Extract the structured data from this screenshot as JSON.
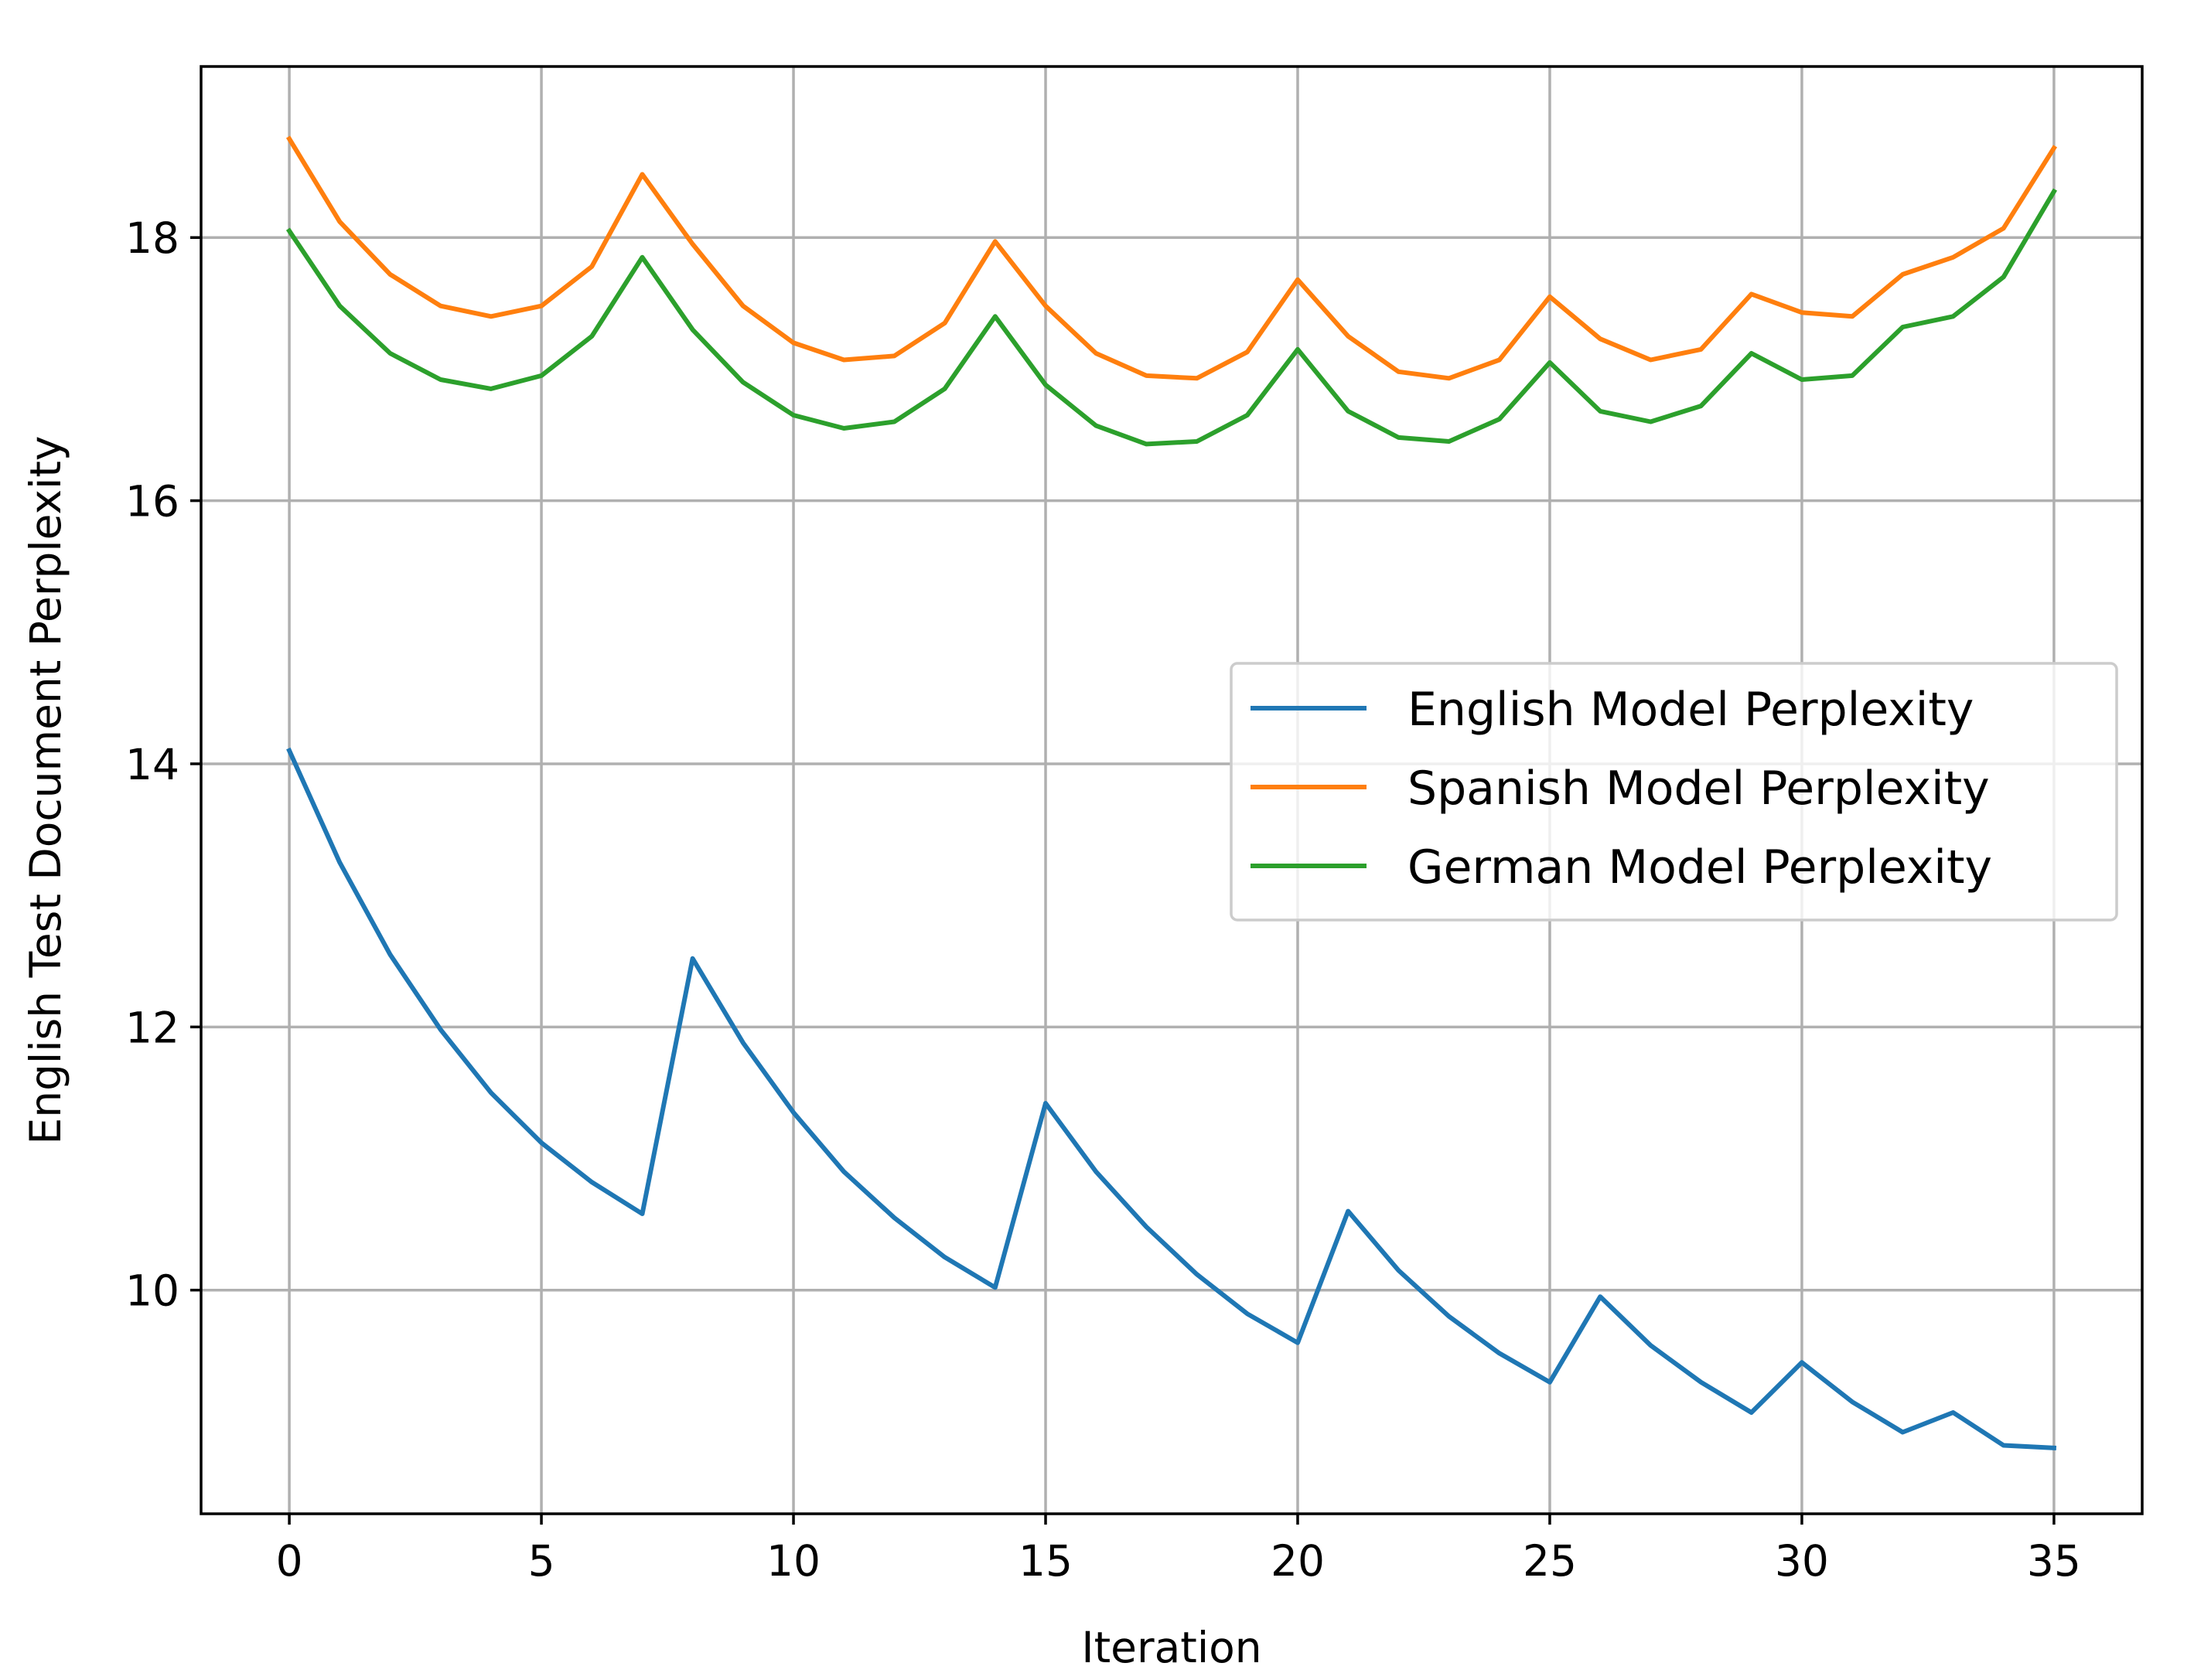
{
  "chart_data": {
    "type": "line",
    "title": "",
    "xlabel": "Iteration",
    "ylabel": "English Test Document Perplexity",
    "xlim": [
      -1.75,
      36.75
    ],
    "ylim": [
      8.3,
      19.3
    ],
    "xticks": [
      0,
      5,
      10,
      15,
      20,
      25,
      30,
      35
    ],
    "yticks": [
      10,
      12,
      14,
      16,
      18
    ],
    "grid": true,
    "legend_position": "center-right",
    "x": [
      0,
      1,
      2,
      3,
      4,
      5,
      6,
      7,
      8,
      9,
      10,
      11,
      12,
      13,
      14,
      15,
      16,
      17,
      18,
      19,
      20,
      21,
      22,
      23,
      24,
      25,
      26,
      27,
      28,
      29,
      30,
      31,
      32,
      33,
      34,
      35
    ],
    "series": [
      {
        "name": "English Model Perplexity",
        "color": "#1f77b4",
        "values": [
          14.1,
          13.25,
          12.55,
          11.98,
          11.5,
          11.12,
          10.82,
          10.58,
          12.52,
          11.88,
          11.35,
          10.9,
          10.55,
          10.25,
          10.02,
          11.42,
          10.9,
          10.48,
          10.12,
          9.82,
          9.6,
          10.6,
          10.15,
          9.8,
          9.52,
          9.3,
          9.95,
          9.58,
          9.3,
          9.07,
          9.45,
          9.15,
          8.92,
          9.07,
          8.82,
          8.8
        ]
      },
      {
        "name": "Spanish Model Perplexity",
        "color": "#ff7f0e",
        "values": [
          18.75,
          18.12,
          17.72,
          17.48,
          17.4,
          17.48,
          17.78,
          18.48,
          17.95,
          17.48,
          17.2,
          17.07,
          17.1,
          17.35,
          17.97,
          17.48,
          17.12,
          16.95,
          16.93,
          17.13,
          17.68,
          17.25,
          16.98,
          16.93,
          17.07,
          17.55,
          17.23,
          17.07,
          17.15,
          17.57,
          17.43,
          17.4,
          17.72,
          17.85,
          18.07,
          18.68
        ]
      },
      {
        "name": "German Model Perplexity",
        "color": "#2ca02c",
        "values": [
          18.05,
          17.48,
          17.12,
          16.92,
          16.85,
          16.95,
          17.25,
          17.85,
          17.3,
          16.9,
          16.65,
          16.55,
          16.6,
          16.85,
          17.4,
          16.88,
          16.57,
          16.43,
          16.45,
          16.65,
          17.15,
          16.68,
          16.48,
          16.45,
          16.62,
          17.05,
          16.68,
          16.6,
          16.72,
          17.12,
          16.92,
          16.95,
          17.32,
          17.4,
          17.7,
          18.35
        ]
      }
    ]
  }
}
